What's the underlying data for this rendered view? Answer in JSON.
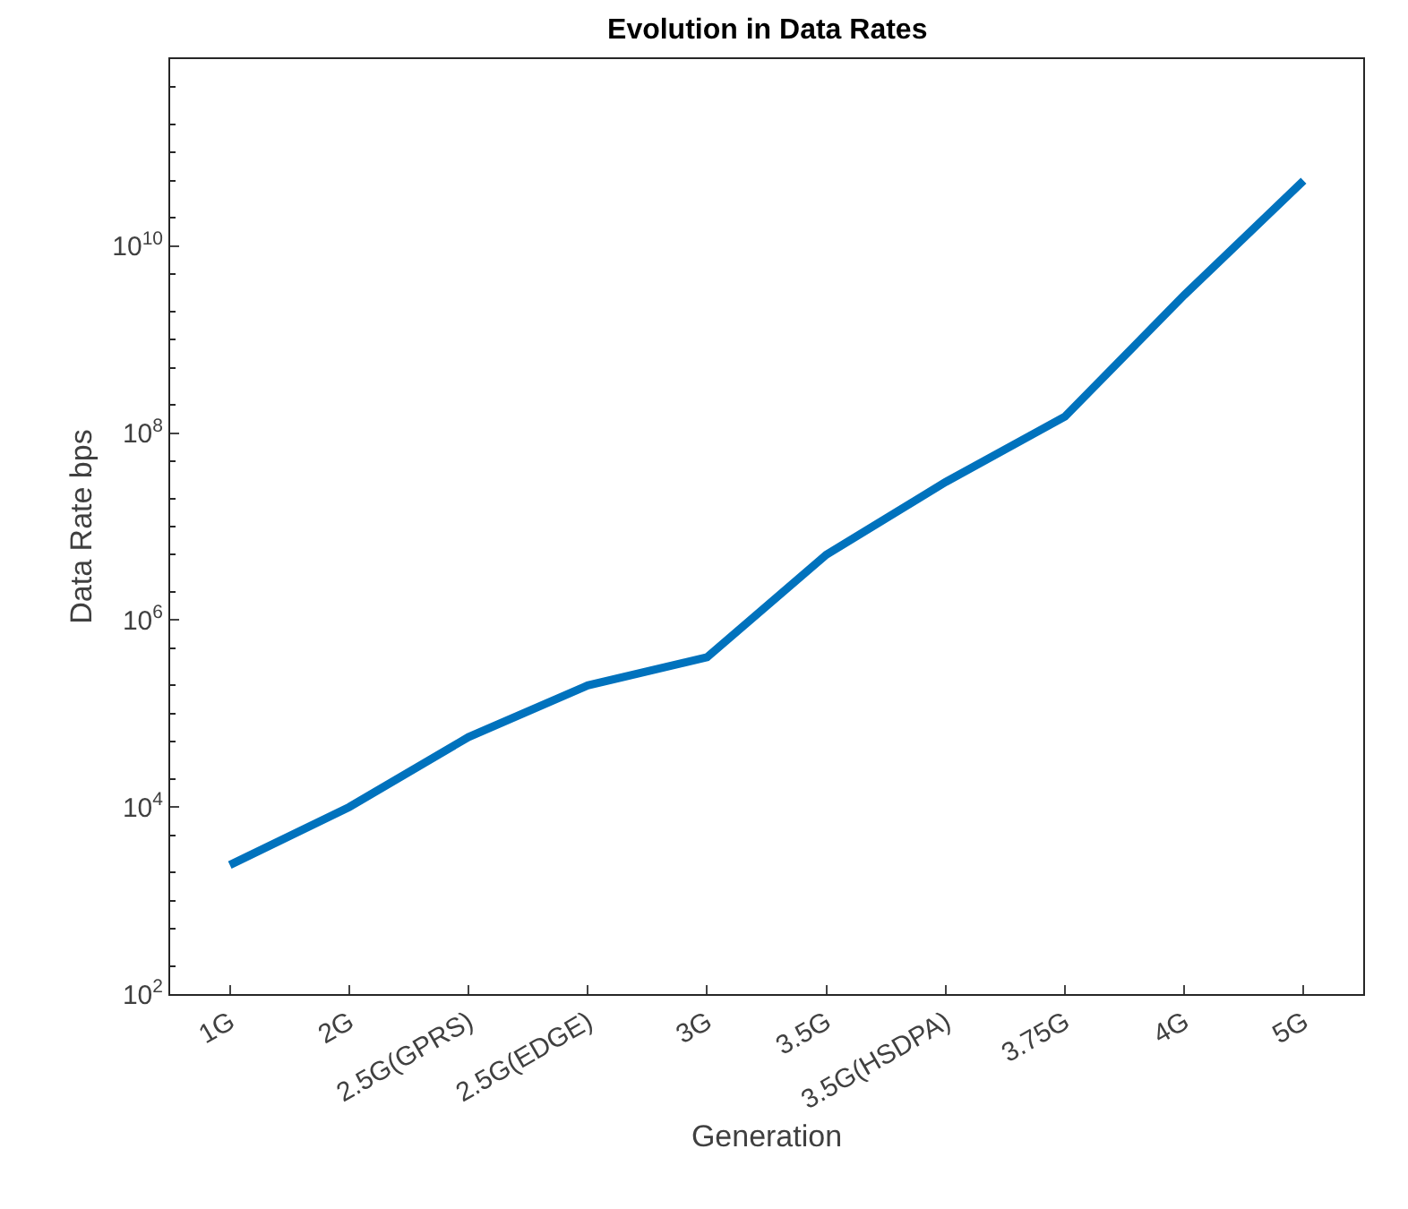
{
  "chart_data": {
    "type": "line",
    "title": "Evolution in Data Rates",
    "xlabel": "Generation",
    "ylabel": "Data Rate bps",
    "categories": [
      "1G",
      "2G",
      "2.5G(GPRS)",
      "2.5G(EDGE)",
      "3G",
      "3.5G",
      "3.5G(HSDPA)",
      "3.75G",
      "4G",
      "5G"
    ],
    "series": [
      {
        "color": "#0072bd",
        "values": [
          2400,
          10000,
          56000,
          200000,
          400000,
          5000000,
          30000000,
          150000000,
          3000000000,
          50000000000
        ]
      }
    ],
    "log": "y",
    "ylim": [
      100,
      1000000000000
    ],
    "yticks": [
      {
        "value": 100,
        "label": "10$^{2}$"
      },
      {
        "value": 10000,
        "label": "10$^{4}$"
      },
      {
        "value": 1000000,
        "label": "10$^{6}$"
      },
      {
        "value": 100000000,
        "label": "10$^{8}$"
      },
      {
        "value": 10000000000,
        "label": "10$^{10}$"
      },
      {
        "value": 1000000000000,
        "label": null
      }
    ],
    "grid": false,
    "marker": "none",
    "line_style": "solid"
  }
}
